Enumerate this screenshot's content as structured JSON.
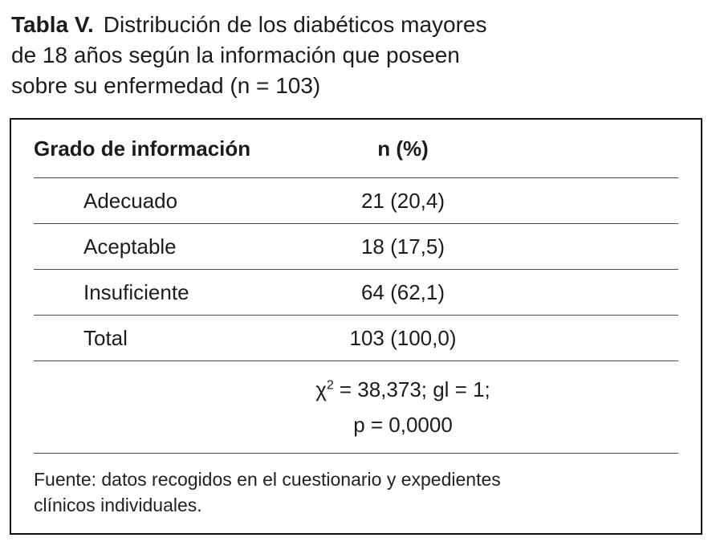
{
  "caption": {
    "line1_bold": "Tabla V.",
    "line1_rest": "Distribución de los diabéticos mayores",
    "line2": "de 18 años según la información que poseen",
    "line3": "sobre su enfermedad (n = 103)"
  },
  "table": {
    "header": {
      "col1": "Grado de información",
      "col2": "n (%)"
    },
    "rows": [
      {
        "label": "Adecuado",
        "value": "21 (20,4)"
      },
      {
        "label": "Aceptable",
        "value": "18 (17,5)"
      },
      {
        "label": "Insuficiente",
        "value": "64 (62,1)"
      },
      {
        "label": "Total",
        "value": "103 (100,0)"
      }
    ],
    "stats": {
      "chi_symbol": "χ",
      "chi_exponent": "2",
      "line1_rest": "= 38,373; gl = 1;",
      "line2": "p = 0,0000"
    },
    "footer": {
      "line1": "Fuente: datos recogidos en el cuestionario y expedientes",
      "line2": "clínicos individuales."
    }
  }
}
